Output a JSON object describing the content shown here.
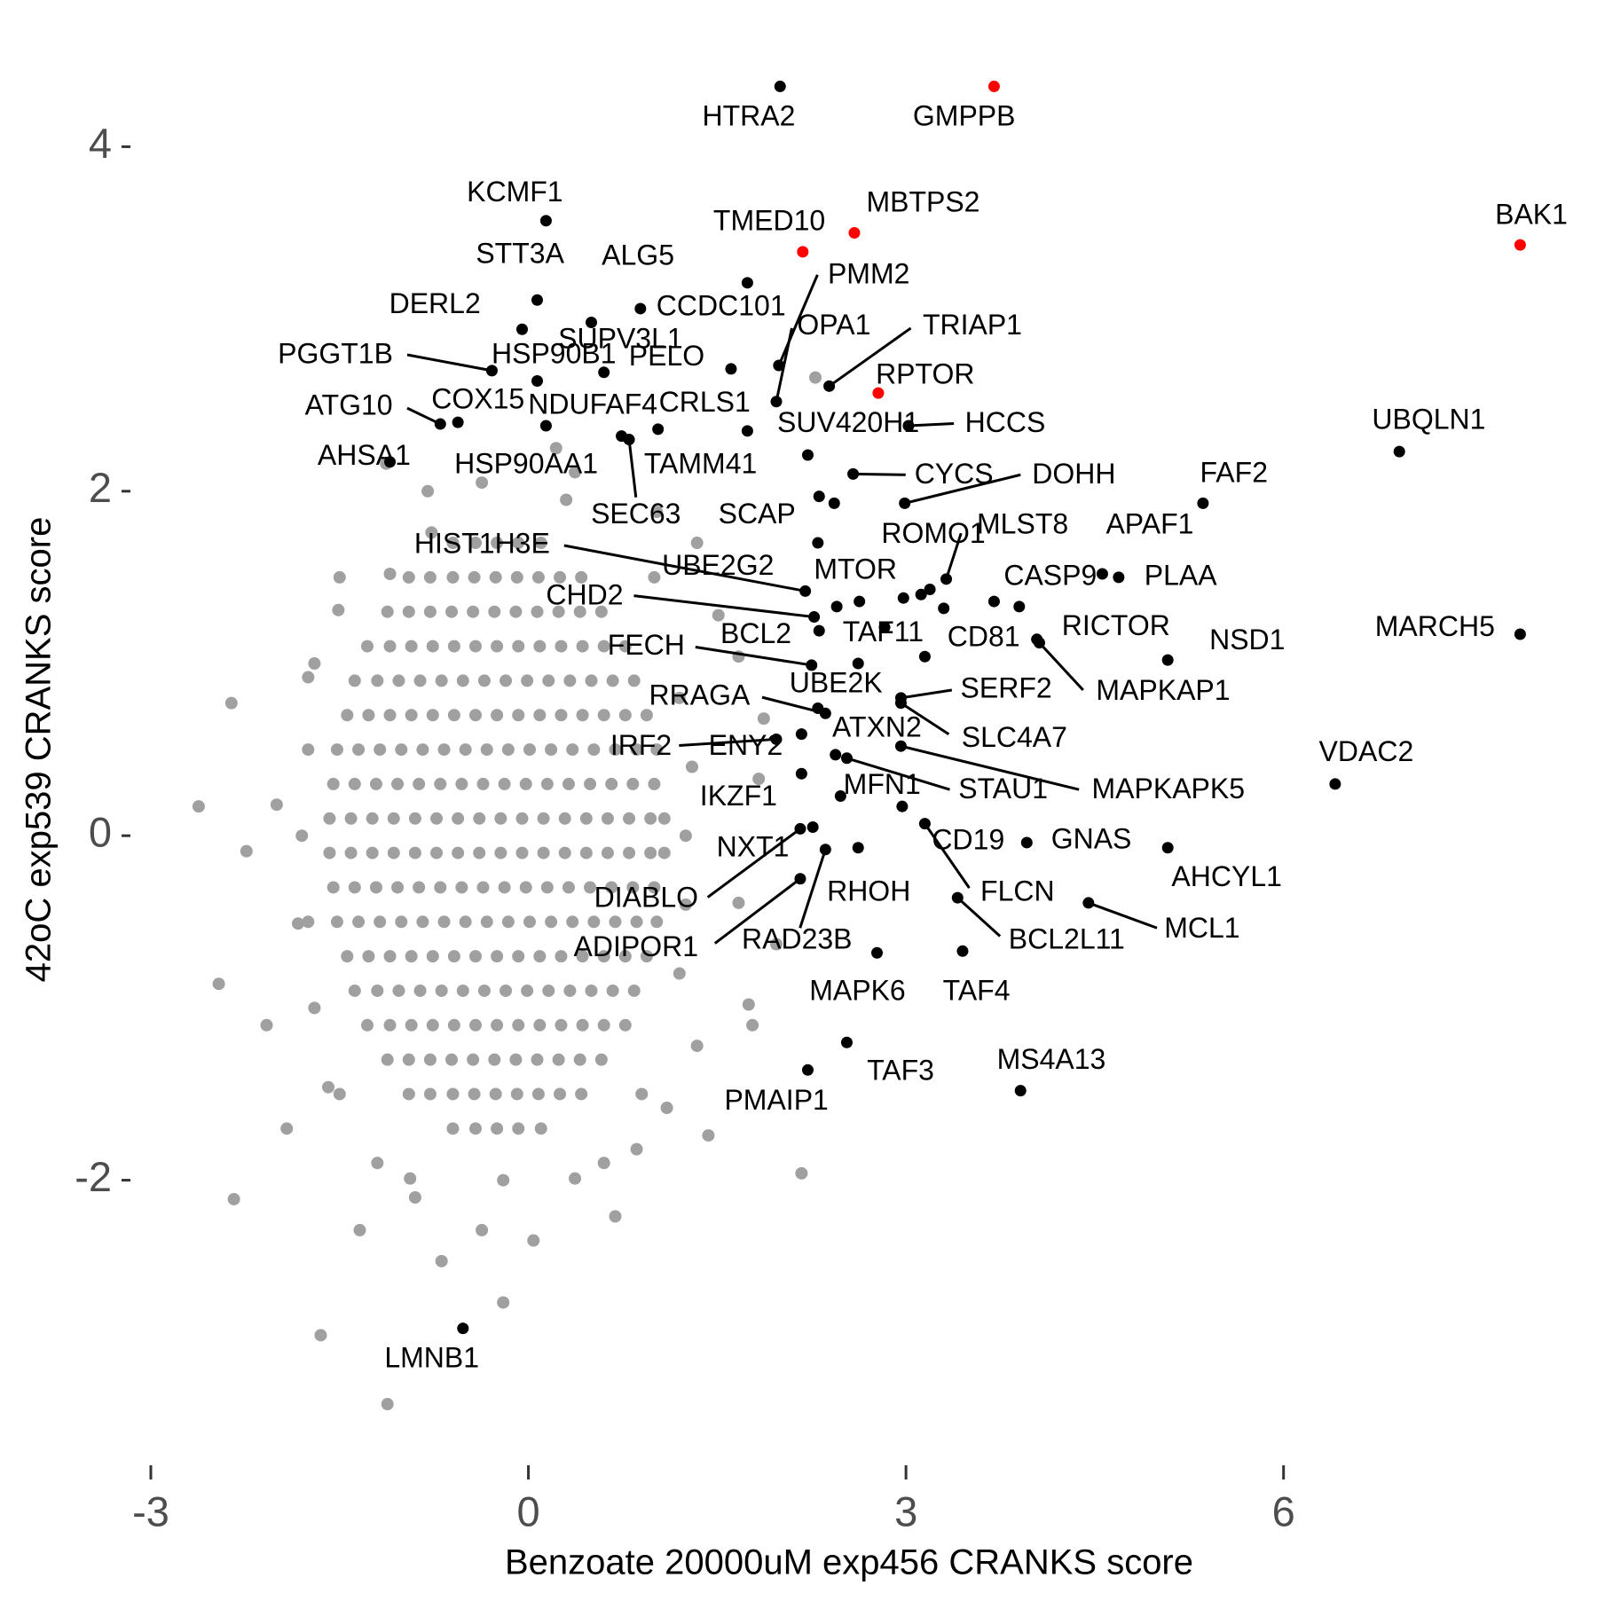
{
  "chart_data": {
    "type": "scatter",
    "x_label": "Benzoate 20000uM exp456 CRANKS score",
    "y_label": "42oC exp539 CRANKS score",
    "xlim": [
      -3,
      8.1
    ],
    "ylim": [
      -3.6,
      4.5
    ],
    "xticks": [
      -3,
      0,
      3,
      6
    ],
    "yticks": [
      -2,
      0,
      2,
      4
    ],
    "grid": false,
    "series": [
      {
        "color": "#a0a0a0",
        "x": [
          -0.6,
          -0.42,
          -0.25,
          -0.08,
          0.1,
          -0.95,
          -0.78,
          -0.6,
          -0.43,
          -0.26,
          -0.09,
          0.08,
          0.25,
          0.42,
          -1.12,
          -0.95,
          -0.78,
          -0.61,
          -0.44,
          -0.27,
          -0.1,
          0.07,
          0.24,
          0.41,
          0.58,
          -1.28,
          -1.1,
          -0.93,
          -0.76,
          -0.59,
          -0.42,
          -0.25,
          -0.08,
          0.09,
          0.26,
          0.43,
          0.6,
          0.77,
          -1.38,
          -1.2,
          -1.03,
          -0.86,
          -0.69,
          -0.52,
          -0.35,
          -0.18,
          -0.01,
          0.16,
          0.33,
          0.5,
          0.67,
          0.84,
          -1.44,
          -1.27,
          -1.1,
          -0.93,
          -0.76,
          -0.59,
          -0.42,
          -0.25,
          -0.08,
          0.09,
          0.26,
          0.43,
          0.6,
          0.77,
          0.94,
          -1.52,
          -1.35,
          -1.18,
          -1.01,
          -0.84,
          -0.67,
          -0.5,
          -0.33,
          -0.16,
          0.01,
          0.18,
          0.35,
          0.52,
          0.69,
          0.86,
          1.02,
          -1.55,
          -1.38,
          -1.21,
          -1.04,
          -0.87,
          -0.7,
          -0.53,
          -0.36,
          -0.19,
          -0.02,
          0.15,
          0.32,
          0.49,
          0.66,
          0.83,
          1.0,
          -1.58,
          -1.41,
          -1.24,
          -1.07,
          -0.9,
          -0.73,
          -0.56,
          -0.39,
          -0.22,
          -0.05,
          0.12,
          0.29,
          0.46,
          0.63,
          0.8,
          0.97,
          1.08,
          -1.58,
          -1.41,
          -1.24,
          -1.07,
          -0.9,
          -0.73,
          -0.56,
          -0.39,
          -0.22,
          -0.05,
          0.12,
          0.29,
          0.46,
          0.63,
          0.8,
          0.97,
          1.08,
          -1.55,
          -1.38,
          -1.21,
          -1.04,
          -0.87,
          -0.7,
          -0.53,
          -0.36,
          -0.19,
          -0.02,
          0.15,
          0.32,
          0.49,
          0.66,
          0.83,
          1.0,
          -1.52,
          -1.35,
          -1.18,
          -1.01,
          -0.84,
          -0.67,
          -0.5,
          -0.33,
          -0.16,
          0.01,
          0.18,
          0.35,
          0.52,
          0.69,
          0.86,
          1.02,
          -1.44,
          -1.27,
          -1.1,
          -0.93,
          -0.76,
          -0.59,
          -0.42,
          -0.25,
          -0.08,
          0.09,
          0.26,
          0.43,
          0.6,
          0.77,
          0.94,
          -1.38,
          -1.2,
          -1.03,
          -0.86,
          -0.69,
          -0.52,
          -0.35,
          -0.18,
          -0.01,
          0.16,
          0.33,
          0.5,
          0.67,
          0.84,
          -1.28,
          -1.1,
          -0.93,
          -0.76,
          -0.59,
          -0.42,
          -0.25,
          -0.08,
          0.09,
          0.26,
          0.43,
          0.6,
          0.77,
          -1.12,
          -0.95,
          -0.78,
          -0.61,
          -0.44,
          -0.27,
          -0.1,
          0.07,
          0.24,
          0.41,
          0.58,
          -0.95,
          -0.78,
          -0.6,
          -0.43,
          -0.26,
          -0.09,
          0.08,
          0.25,
          0.42,
          -0.6,
          -0.42,
          -0.25,
          -0.08,
          0.1,
          -2.62,
          -2.36,
          -2.34,
          -2.46,
          -1.65,
          -1.12,
          -0.2,
          0.69,
          1.43,
          2.17,
          1.78,
          2.28,
          0.22,
          -1.13,
          -1.51,
          -2.0,
          -2.08,
          -1.92,
          -1.34,
          -0.69,
          0.37,
          1.1,
          1.67,
          1.83,
          1.51,
          1.02,
          0.37,
          -0.37,
          -0.77,
          -1.1,
          -1.75,
          -2.24,
          -1.83,
          -1.59,
          -0.94,
          -0.37,
          0.04,
          0.86,
          1.34,
          1.97,
          1.75,
          1.34,
          1.67,
          1.87,
          1.25,
          1.3,
          1.25,
          1.2,
          1.2,
          -1.8,
          -1.75,
          -1.75,
          -1.7,
          -1.7,
          -1.5,
          -1.5,
          -1.2,
          -0.9,
          0.6,
          0.9,
          -0.2,
          0.3,
          -0.8,
          1.0
        ],
        "values": [
          1.7,
          1.7,
          1.7,
          1.7,
          1.7,
          1.5,
          1.5,
          1.5,
          1.5,
          1.5,
          1.5,
          1.5,
          1.5,
          1.5,
          1.3,
          1.3,
          1.3,
          1.3,
          1.3,
          1.3,
          1.3,
          1.3,
          1.3,
          1.3,
          1.3,
          1.1,
          1.1,
          1.1,
          1.1,
          1.1,
          1.1,
          1.1,
          1.1,
          1.1,
          1.1,
          1.1,
          1.1,
          1.1,
          0.9,
          0.9,
          0.9,
          0.9,
          0.9,
          0.9,
          0.9,
          0.9,
          0.9,
          0.9,
          0.9,
          0.9,
          0.9,
          0.9,
          0.7,
          0.7,
          0.7,
          0.7,
          0.7,
          0.7,
          0.7,
          0.7,
          0.7,
          0.7,
          0.7,
          0.7,
          0.7,
          0.7,
          0.7,
          0.5,
          0.5,
          0.5,
          0.5,
          0.5,
          0.5,
          0.5,
          0.5,
          0.5,
          0.5,
          0.5,
          0.5,
          0.5,
          0.5,
          0.5,
          0.5,
          0.3,
          0.3,
          0.3,
          0.3,
          0.3,
          0.3,
          0.3,
          0.3,
          0.3,
          0.3,
          0.3,
          0.3,
          0.3,
          0.3,
          0.3,
          0.3,
          0.1,
          0.1,
          0.1,
          0.1,
          0.1,
          0.1,
          0.1,
          0.1,
          0.1,
          0.1,
          0.1,
          0.1,
          0.1,
          0.1,
          0.1,
          0.1,
          0.1,
          -0.1,
          -0.1,
          -0.1,
          -0.1,
          -0.1,
          -0.1,
          -0.1,
          -0.1,
          -0.1,
          -0.1,
          -0.1,
          -0.1,
          -0.1,
          -0.1,
          -0.1,
          -0.1,
          -0.1,
          -0.3,
          -0.3,
          -0.3,
          -0.3,
          -0.3,
          -0.3,
          -0.3,
          -0.3,
          -0.3,
          -0.3,
          -0.3,
          -0.3,
          -0.3,
          -0.3,
          -0.3,
          -0.3,
          -0.5,
          -0.5,
          -0.5,
          -0.5,
          -0.5,
          -0.5,
          -0.5,
          -0.5,
          -0.5,
          -0.5,
          -0.5,
          -0.5,
          -0.5,
          -0.5,
          -0.5,
          -0.5,
          -0.7,
          -0.7,
          -0.7,
          -0.7,
          -0.7,
          -0.7,
          -0.7,
          -0.7,
          -0.7,
          -0.7,
          -0.7,
          -0.7,
          -0.7,
          -0.7,
          -0.7,
          -0.9,
          -0.9,
          -0.9,
          -0.9,
          -0.9,
          -0.9,
          -0.9,
          -0.9,
          -0.9,
          -0.9,
          -0.9,
          -0.9,
          -0.9,
          -0.9,
          -1.1,
          -1.1,
          -1.1,
          -1.1,
          -1.1,
          -1.1,
          -1.1,
          -1.1,
          -1.1,
          -1.1,
          -1.1,
          -1.1,
          -1.1,
          -1.3,
          -1.3,
          -1.3,
          -1.3,
          -1.3,
          -1.3,
          -1.3,
          -1.3,
          -1.3,
          -1.3,
          -1.3,
          -1.5,
          -1.5,
          -1.5,
          -1.5,
          -1.5,
          -1.5,
          -1.5,
          -1.5,
          -1.5,
          -1.7,
          -1.7,
          -1.7,
          -1.7,
          -1.7,
          0.17,
          0.77,
          -2.11,
          -0.86,
          -2.9,
          -3.3,
          -2.71,
          -2.21,
          -1.74,
          -1.96,
          -1.1,
          2.66,
          2.25,
          2.16,
          1.31,
          0.18,
          -1.1,
          -1.7,
          -2.29,
          -2.47,
          -1.99,
          -1.58,
          -0.39,
          0.33,
          1.28,
          1.88,
          2.11,
          2.05,
          1.76,
          1.52,
          0.92,
          -0.09,
          -0.51,
          -1.46,
          -1.99,
          -2.29,
          -2.35,
          -1.82,
          -1.22,
          -0.63,
          -0.98,
          1.7,
          1.04,
          0.68,
          0.0,
          0.4,
          -0.4,
          0.8,
          -0.8,
          0.0,
          0.5,
          -0.5,
          1.0,
          -1.0,
          1.5,
          -1.5,
          -1.9,
          -2.1,
          -1.9,
          -1.5,
          -2.0,
          1.95,
          2.0,
          1.5
        ]
      },
      {
        "color": "#000000",
        "labels": [
          "HTRA2",
          "KCMF1",
          "ALG5",
          "STT3A",
          "PMM2",
          "DERL2",
          "CCDC101",
          "SUPV3L1",
          "OPA1",
          "TRIAP1",
          "PGGT1B",
          "HSP90B1",
          "PELO",
          "ATG10",
          "COX15",
          "NDUFAF4",
          "CRLS1",
          "SUV420H1",
          "HCCS",
          "AHSA1",
          "HSP90AA1",
          "TAMM41",
          "SEC63",
          "CYCS",
          "DOHH",
          "FAF2",
          "UBQLN1",
          "SCAP",
          "MLST8",
          "ROMO1",
          "APAF1",
          "PLAA",
          "MTOR",
          "HIST1H3E",
          "UBE2G2",
          "CASP9",
          "CHD2",
          "TAF11",
          "BCL2",
          "FECH",
          "CD81",
          "RICTOR",
          "MAPKAP1",
          "NSD1",
          "MARCH5",
          "SERF2",
          "UBE2K",
          "RRAGA",
          "SLC4A7",
          "ATXN2",
          "IRF2",
          "ENY2",
          "MAPKAPK5",
          "VDAC2",
          "IKZF1",
          "MFN1",
          "STAU1",
          "CD19",
          "GNAS",
          "AHCYL1",
          "NXT1",
          "DIABLO",
          "RHOH",
          "ADIPOR1",
          "RAD23B",
          "FLCN",
          "BCL2L11",
          "MCL1",
          "MAPK6",
          "TAF4",
          "TAF3",
          "PMAIP1",
          "MS4A13",
          "LMNB1",
          null,
          null,
          null,
          null,
          null,
          null,
          null,
          null
        ],
        "x": [
          2.0,
          0.14,
          1.74,
          0.07,
          1.99,
          0.5,
          0.89,
          -0.05,
          1.97,
          2.39,
          -0.29,
          0.07,
          0.6,
          -0.7,
          -0.56,
          0.14,
          1.74,
          2.22,
          3.02,
          -1.1,
          0.74,
          1.03,
          0.8,
          2.58,
          2.99,
          5.36,
          6.92,
          2.31,
          3.32,
          3.19,
          4.56,
          4.69,
          2.3,
          2.2,
          2.45,
          3.7,
          2.27,
          2.31,
          2.62,
          2.25,
          3.15,
          4.04,
          4.06,
          5.08,
          7.88,
          2.96,
          2.3,
          2.36,
          2.96,
          2.17,
          1.97,
          2.44,
          2.96,
          6.41,
          2.17,
          2.48,
          2.53,
          2.97,
          3.96,
          5.08,
          2.26,
          2.16,
          2.62,
          2.16,
          2.36,
          3.15,
          3.41,
          4.45,
          2.77,
          3.45,
          2.53,
          2.22,
          3.91,
          -0.52,
          1.61,
          2.63,
          2.98,
          3.12,
          3.3,
          2.83,
          3.9,
          2.43
        ],
        "values": [
          4.35,
          3.57,
          3.21,
          3.11,
          2.73,
          2.98,
          3.06,
          2.94,
          2.52,
          2.61,
          2.7,
          2.64,
          2.69,
          2.39,
          2.4,
          2.38,
          2.35,
          2.21,
          2.38,
          2.17,
          2.32,
          2.36,
          2.3,
          2.1,
          1.93,
          1.93,
          2.23,
          1.97,
          1.49,
          1.43,
          1.52,
          1.5,
          1.7,
          1.42,
          1.33,
          1.36,
          1.27,
          1.19,
          1.0,
          0.99,
          1.04,
          1.14,
          1.12,
          1.02,
          1.17,
          0.8,
          0.74,
          0.71,
          0.77,
          0.59,
          0.56,
          0.47,
          0.52,
          0.3,
          0.36,
          0.23,
          0.45,
          0.17,
          -0.04,
          -0.07,
          0.05,
          0.04,
          -0.07,
          -0.25,
          -0.08,
          0.07,
          -0.36,
          -0.39,
          -0.68,
          -0.67,
          -1.2,
          -1.36,
          -1.48,
          -2.86,
          2.71,
          1.36,
          1.38,
          1.4,
          1.32,
          1.21,
          1.33,
          1.93
        ]
      },
      {
        "color": "#ff0000",
        "labels": [
          "GMPPB",
          "MBTPS2",
          "TMED10",
          "BAK1",
          "RPTOR"
        ],
        "x": [
          3.7,
          2.59,
          2.18,
          7.88,
          2.78
        ],
        "values": [
          4.35,
          3.5,
          3.39,
          3.43,
          2.57
        ]
      }
    ]
  }
}
